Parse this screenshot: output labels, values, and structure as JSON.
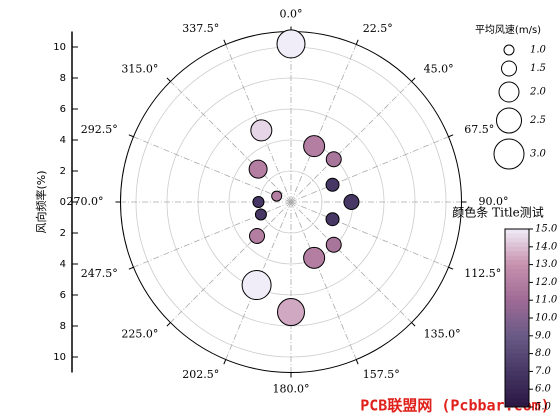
{
  "chart_data": {
    "type": "polar-bubble",
    "ylabel": "风向频率(%)",
    "ylim": [
      0,
      11
    ],
    "yticks": [
      0,
      2,
      4,
      6,
      8,
      10
    ],
    "xlim": [
      0,
      360
    ],
    "xticks": [
      {
        "value": 0,
        "label": "0.0°"
      },
      {
        "value": 22.5,
        "label": "22.5°"
      },
      {
        "value": 45,
        "label": "45.0°"
      },
      {
        "value": 67.5,
        "label": "67.5°"
      },
      {
        "value": 90,
        "label": "90.0°"
      },
      {
        "value": 112.5,
        "label": "112.5°"
      },
      {
        "value": 135,
        "label": "135.0°"
      },
      {
        "value": 157.5,
        "label": "157.5°"
      },
      {
        "value": 180,
        "label": "180.0°"
      },
      {
        "value": 202.5,
        "label": "202.5°"
      },
      {
        "value": 225,
        "label": "225.0°"
      },
      {
        "value": 247.5,
        "label": "247.5°"
      },
      {
        "value": 270,
        "label": "270.0°"
      },
      {
        "value": 292.5,
        "label": "292.5°"
      },
      {
        "value": 315,
        "label": "315.0°"
      },
      {
        "value": 337.5,
        "label": "337.5°"
      }
    ],
    "grid": true,
    "theta": [
      0,
      337.5,
      22.5,
      45,
      67.5,
      90,
      112.5,
      135,
      157.5,
      180,
      202.5,
      225,
      247.5,
      270,
      292.5,
      315
    ],
    "r": [
      10.2,
      5.0,
      3.9,
      3.9,
      2.9,
      3.9,
      2.9,
      3.9,
      3.9,
      7.1,
      5.8,
      3.1,
      2.1,
      2.1,
      1.0,
      3.0
    ],
    "size": [
      2.8,
      2.1,
      2.1,
      1.5,
      1.3,
      1.5,
      1.3,
      1.5,
      2.1,
      2.7,
      2.9,
      1.5,
      1.1,
      1.1,
      1.0,
      1.8
    ],
    "color_values": [
      15,
      14.5,
      12,
      11.5,
      7,
      7,
      7,
      11.5,
      12,
      13.5,
      15,
      12,
      7,
      7,
      12,
      12
    ],
    "size_legend": {
      "title": "平均风速(m/s)",
      "values": [
        {
          "value": 1,
          "label": "1.0"
        },
        {
          "value": 1.5,
          "label": "1.5"
        },
        {
          "value": 2,
          "label": "2.0"
        },
        {
          "value": 2.5,
          "label": "2.5"
        },
        {
          "value": 3,
          "label": "3.0"
        }
      ]
    },
    "colorbar": {
      "title": "颜色条 Title测试",
      "clim": [
        5,
        15
      ],
      "ticks": [
        {
          "value": 15,
          "label": "15.0"
        },
        {
          "value": 14,
          "label": "14.0"
        },
        {
          "value": 13,
          "label": "13.0"
        },
        {
          "value": 12,
          "label": "12.0"
        },
        {
          "value": 11,
          "label": "11.0"
        },
        {
          "value": 10,
          "label": "10.0"
        },
        {
          "value": 9,
          "label": "9.0"
        },
        {
          "value": 8,
          "label": "8.0"
        },
        {
          "value": 7,
          "label": "7.0"
        },
        {
          "value": 6,
          "label": "6.0"
        },
        {
          "value": 5,
          "label": "5.0"
        }
      ],
      "colormap": [
        "#2b1642",
        "#463764",
        "#6a5a86",
        "#9e6b95",
        "#c791ae",
        "#f0ecf8"
      ]
    },
    "watermark": "PCB联盟网 (Pcbbar.com)"
  }
}
